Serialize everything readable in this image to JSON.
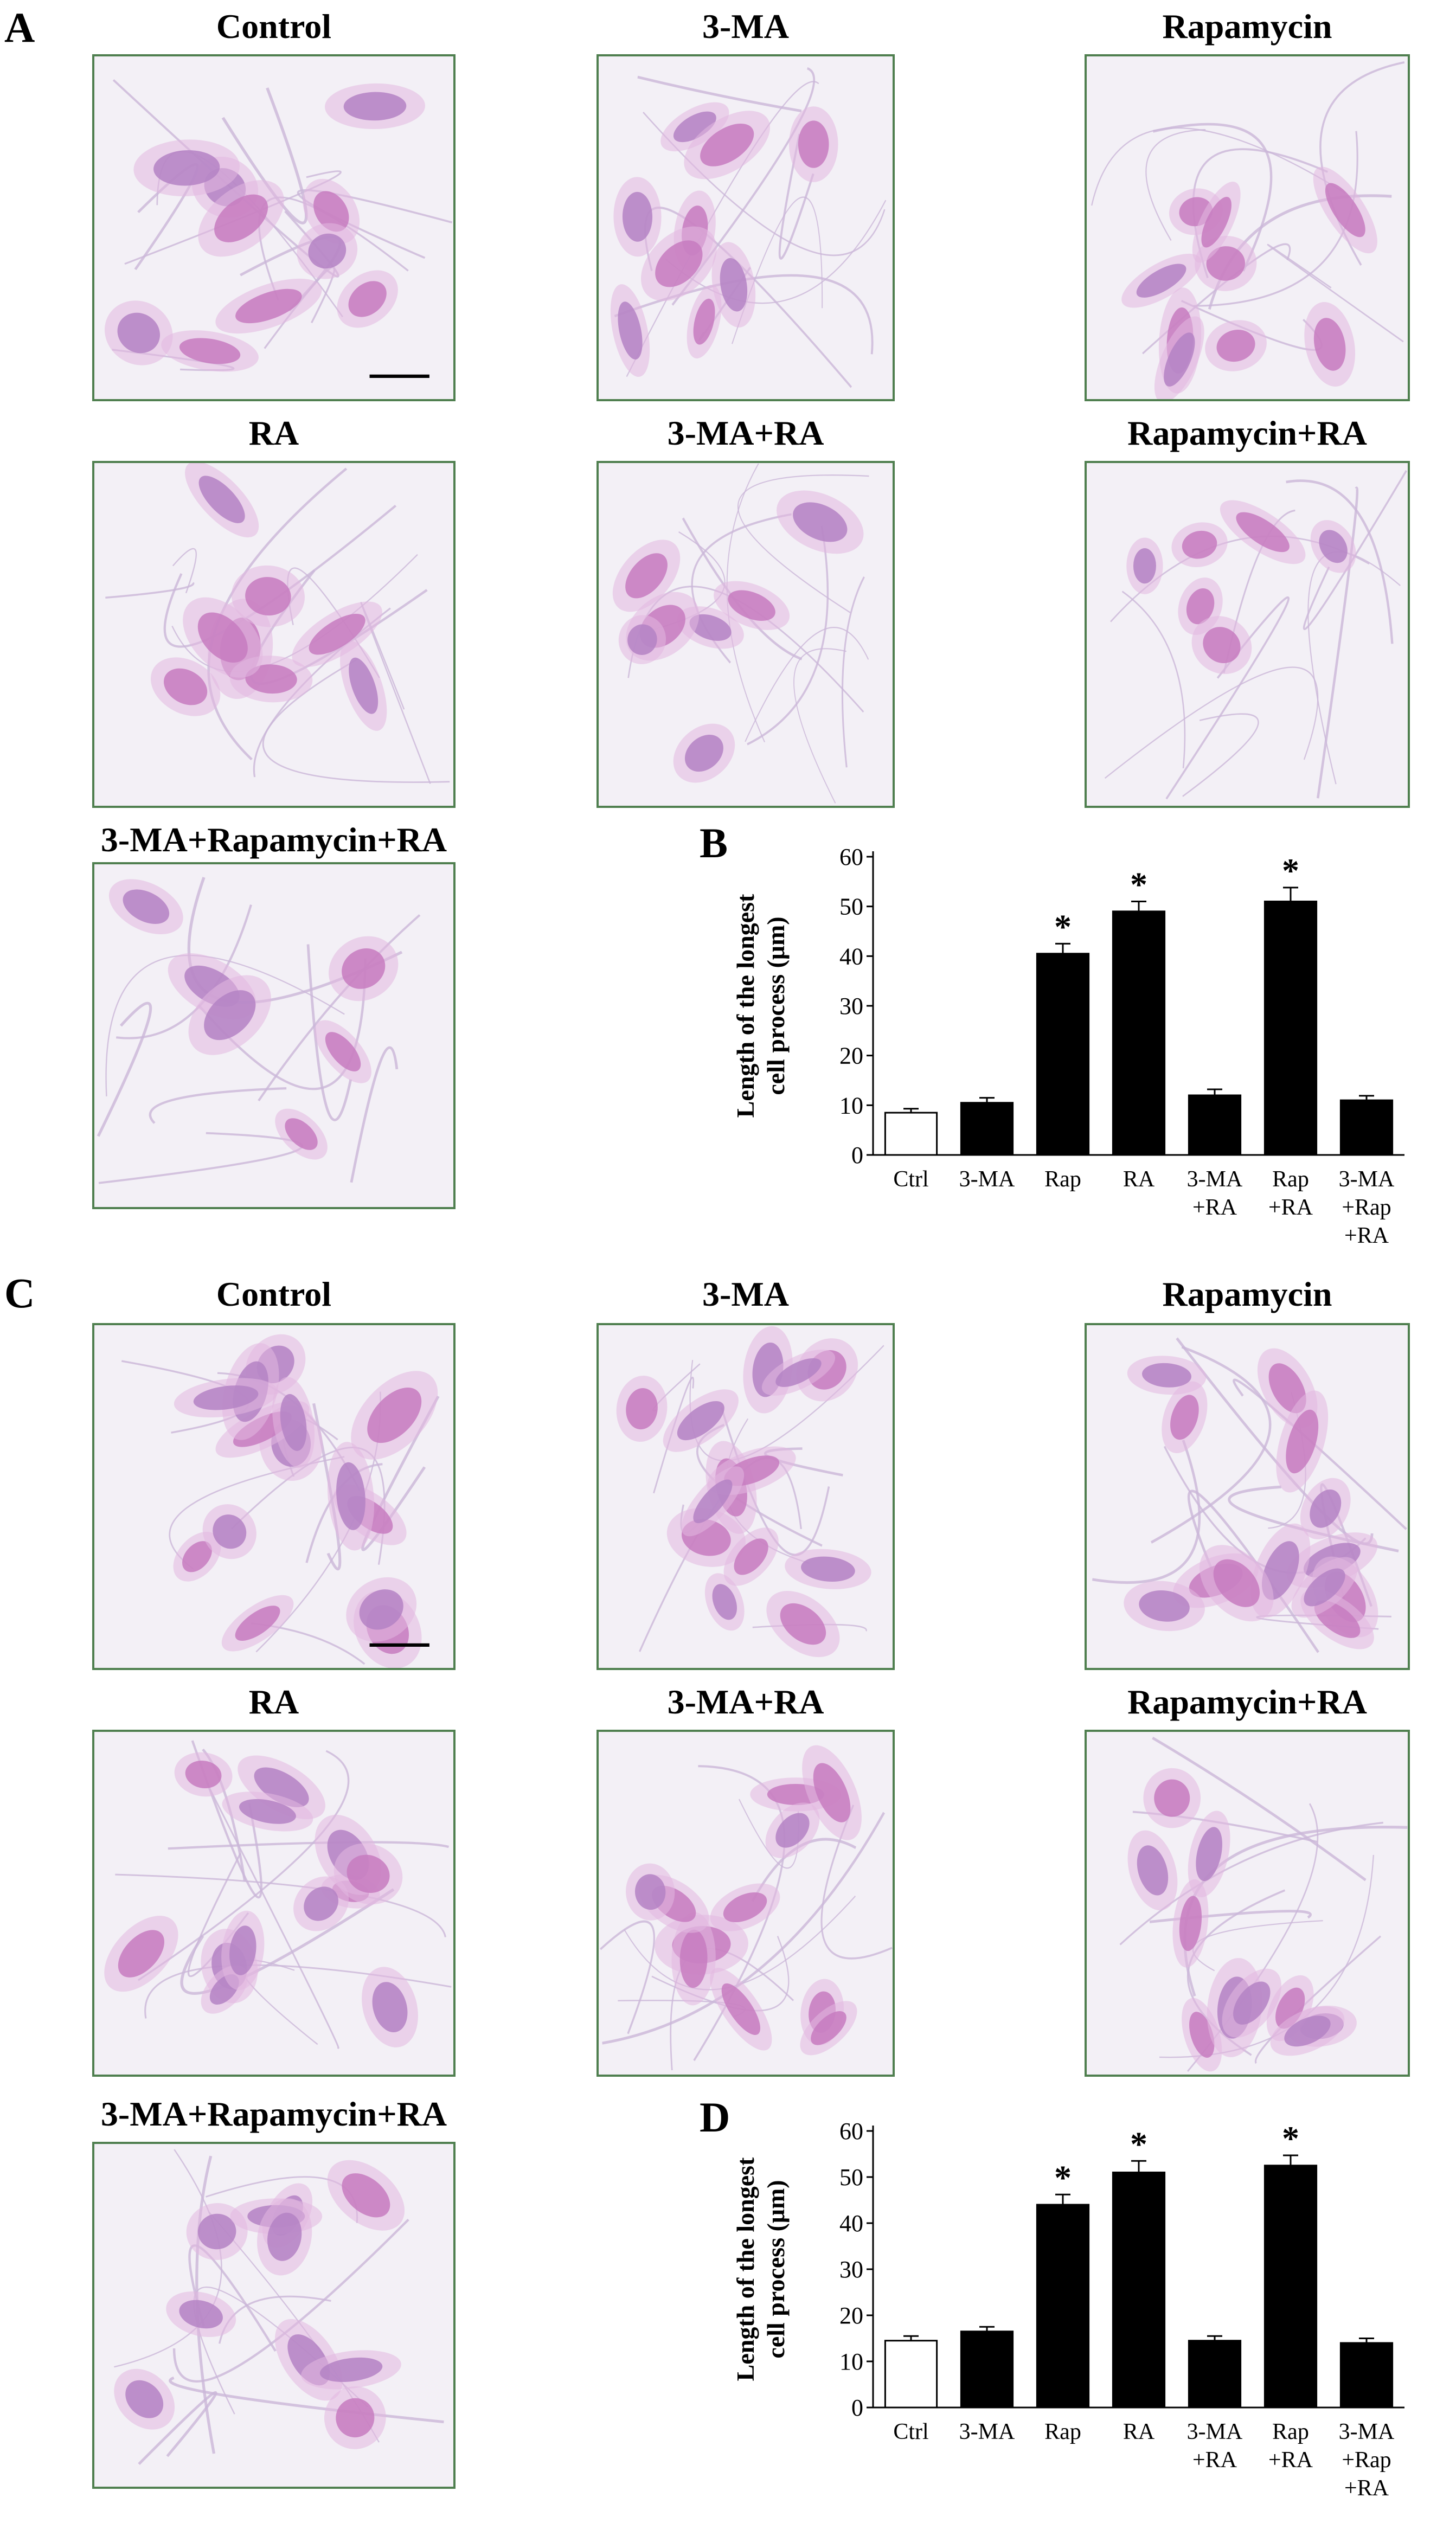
{
  "figure": {
    "panels": [
      {
        "letter": "A",
        "images": [
          {
            "title": "Control",
            "scale_bar": true
          },
          {
            "title": "3-MA",
            "scale_bar": false
          },
          {
            "title": "Rapamycin",
            "scale_bar": false
          },
          {
            "title": "RA",
            "scale_bar": false
          },
          {
            "title": "3-MA+RA",
            "scale_bar": false
          },
          {
            "title": "Rapamycin+RA",
            "scale_bar": false
          },
          {
            "title": "3-MA+Rapamycin+RA",
            "scale_bar": false
          }
        ]
      },
      {
        "letter": "C",
        "images": [
          {
            "title": "Control",
            "scale_bar": true
          },
          {
            "title": "3-MA",
            "scale_bar": false
          },
          {
            "title": "Rapamycin",
            "scale_bar": false
          },
          {
            "title": "RA",
            "scale_bar": false
          },
          {
            "title": "3-MA+RA",
            "scale_bar": false
          },
          {
            "title": "Rapamycin+RA",
            "scale_bar": false
          },
          {
            "title": "3-MA+Rapamycin+RA",
            "scale_bar": false
          }
        ]
      }
    ]
  },
  "chart_data": [
    {
      "panel_letter": "B",
      "type": "bar",
      "ylabel_line1": "Length of the longest",
      "ylabel_line2": "cell process (μm)",
      "ylim": [
        0,
        60
      ],
      "yticks": [
        "0",
        "10",
        "20",
        "30",
        "40",
        "50",
        "60"
      ],
      "categories": [
        [
          "Ctrl"
        ],
        [
          "3-MA"
        ],
        [
          "Rap"
        ],
        [
          "RA"
        ],
        [
          "3-MA",
          "+RA"
        ],
        [
          "Rap",
          "+RA"
        ],
        [
          "3-MA",
          "+Rap",
          "+RA"
        ]
      ],
      "values": [
        8.5,
        10.5,
        40.5,
        49,
        12,
        51,
        11
      ],
      "errors": [
        0.8,
        1.0,
        2.0,
        2.0,
        1.2,
        2.8,
        0.9
      ],
      "significant": [
        false,
        false,
        true,
        true,
        false,
        true,
        false
      ],
      "significance_marker": "*",
      "bar_colors": [
        "#ffffff",
        "#000000",
        "#000000",
        "#000000",
        "#000000",
        "#000000",
        "#000000"
      ]
    },
    {
      "panel_letter": "D",
      "type": "bar",
      "ylabel_line1": "Length of the longest",
      "ylabel_line2": "cell process (μm)",
      "ylim": [
        0,
        60
      ],
      "yticks": [
        "0",
        "10",
        "20",
        "30",
        "40",
        "50",
        "60"
      ],
      "categories": [
        [
          "Ctrl"
        ],
        [
          "3-MA"
        ],
        [
          "Rap"
        ],
        [
          "RA"
        ],
        [
          "3-MA",
          "+RA"
        ],
        [
          "Rap",
          "+RA"
        ],
        [
          "3-MA",
          "+Rap",
          "+RA"
        ]
      ],
      "values": [
        14.5,
        16.5,
        44,
        51,
        14.5,
        52.5,
        14
      ],
      "errors": [
        1.0,
        1.0,
        2.2,
        2.5,
        1.0,
        2.2,
        1.0
      ],
      "significant": [
        false,
        false,
        true,
        true,
        false,
        true,
        false
      ],
      "significance_marker": "*",
      "bar_colors": [
        "#ffffff",
        "#000000",
        "#000000",
        "#000000",
        "#000000",
        "#000000",
        "#000000"
      ]
    }
  ]
}
